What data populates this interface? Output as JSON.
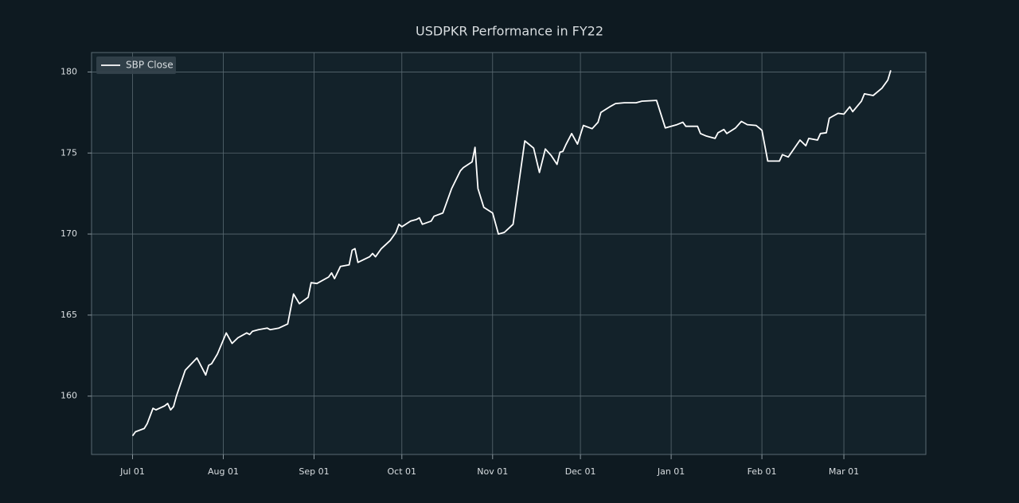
{
  "chart_data": {
    "type": "line",
    "title": "USDPKR Performance in FY22",
    "x": [
      "Jul 01",
      "Jul 02",
      "Jul 05",
      "Jul 06",
      "Jul 08",
      "Jul 09",
      "Jul 12",
      "Jul 13",
      "Jul 14",
      "Jul 15",
      "Jul 16",
      "Jul 19",
      "Jul 23",
      "Jul 26",
      "Jul 27",
      "Jul 28",
      "Jul 30",
      "Aug 02",
      "Aug 04",
      "Aug 06",
      "Aug 09",
      "Aug 10",
      "Aug 11",
      "Aug 13",
      "Aug 16",
      "Aug 17",
      "Aug 20",
      "Aug 23",
      "Aug 25",
      "Aug 27",
      "Aug 30",
      "Aug 31",
      "Sep 02",
      "Sep 06",
      "Sep 07",
      "Sep 08",
      "Sep 10",
      "Sep 13",
      "Sep 14",
      "Sep 15",
      "Sep 16",
      "Sep 20",
      "Sep 21",
      "Sep 22",
      "Sep 24",
      "Sep 27",
      "Sep 29",
      "Sep 30",
      "Oct 01",
      "Oct 04",
      "Oct 06",
      "Oct 07",
      "Oct 08",
      "Oct 11",
      "Oct 12",
      "Oct 15",
      "Oct 18",
      "Oct 21",
      "Oct 22",
      "Oct 25",
      "Oct 26",
      "Oct 27",
      "Oct 29",
      "Nov 01",
      "Nov 03",
      "Nov 05",
      "Nov 08",
      "Nov 12",
      "Nov 15",
      "Nov 17",
      "Nov 19",
      "Nov 21",
      "Nov 23",
      "Nov 24",
      "Nov 25",
      "Nov 26",
      "Nov 28",
      "Nov 30",
      "Dec 02",
      "Dec 05",
      "Dec 07",
      "Dec 08",
      "Dec 11",
      "Dec 13",
      "Dec 16",
      "Dec 20",
      "Dec 22",
      "Dec 27",
      "Dec 30",
      "Jan 03",
      "Jan 05",
      "Jan 06",
      "Jan 10",
      "Jan 11",
      "Jan 13",
      "Jan 16",
      "Jan 17",
      "Jan 19",
      "Jan 20",
      "Jan 23",
      "Jan 25",
      "Jan 27",
      "Jan 30",
      "Feb 01",
      "Feb 03",
      "Feb 07",
      "Feb 08",
      "Feb 10",
      "Feb 14",
      "Feb 16",
      "Feb 17",
      "Feb 20",
      "Feb 21",
      "Feb 23",
      "Feb 24",
      "Feb 27",
      "Mar 01",
      "Mar 03",
      "Mar 04",
      "Mar 07",
      "Mar 08",
      "Mar 11",
      "Mar 14",
      "Mar 16",
      "Mar 17"
    ],
    "series": [
      {
        "name": "SBP Close",
        "color": "#ffffff",
        "values": [
          157.55,
          157.8,
          158.0,
          158.3,
          159.25,
          159.15,
          159.4,
          159.55,
          159.15,
          159.35,
          160.0,
          161.6,
          162.35,
          161.3,
          161.9,
          162.0,
          162.6,
          163.9,
          163.25,
          163.6,
          163.9,
          163.8,
          164.0,
          164.1,
          164.2,
          164.1,
          164.2,
          164.45,
          166.3,
          165.7,
          166.1,
          167.0,
          166.95,
          167.35,
          167.6,
          167.25,
          168.0,
          168.1,
          169.0,
          169.1,
          168.25,
          168.6,
          168.8,
          168.6,
          169.1,
          169.6,
          170.1,
          170.6,
          170.45,
          170.8,
          170.9,
          171.0,
          170.6,
          170.8,
          171.1,
          171.3,
          172.8,
          173.9,
          174.1,
          174.45,
          175.35,
          172.8,
          171.65,
          171.3,
          170.0,
          170.1,
          170.6,
          175.75,
          175.3,
          173.8,
          175.25,
          174.85,
          174.3,
          175.05,
          175.1,
          175.5,
          176.2,
          175.55,
          176.7,
          176.5,
          176.9,
          177.5,
          177.85,
          178.05,
          178.1,
          178.1,
          178.2,
          178.25,
          176.55,
          176.75,
          176.9,
          176.65,
          176.65,
          176.2,
          176.05,
          175.9,
          176.25,
          176.45,
          176.2,
          176.55,
          176.95,
          176.75,
          176.7,
          176.4,
          174.5,
          174.5,
          174.9,
          174.75,
          175.8,
          175.45,
          175.9,
          175.8,
          176.2,
          176.25,
          177.15,
          177.45,
          177.4,
          177.85,
          177.55,
          178.2,
          178.65,
          178.55,
          179.0,
          179.5,
          180.1
        ]
      }
    ],
    "xlim": [
      "Jun 17",
      "Mar 29"
    ],
    "xticks": [
      "Jul 01",
      "Aug 01",
      "Sep 01",
      "Oct 01",
      "Nov 01",
      "Dec 01",
      "Jan 01",
      "Feb 01",
      "Mar 01"
    ],
    "ylim": [
      156.4,
      181.2
    ],
    "yticks": [
      160,
      165,
      170,
      175,
      180
    ],
    "grid": true,
    "legend": "upper left"
  }
}
